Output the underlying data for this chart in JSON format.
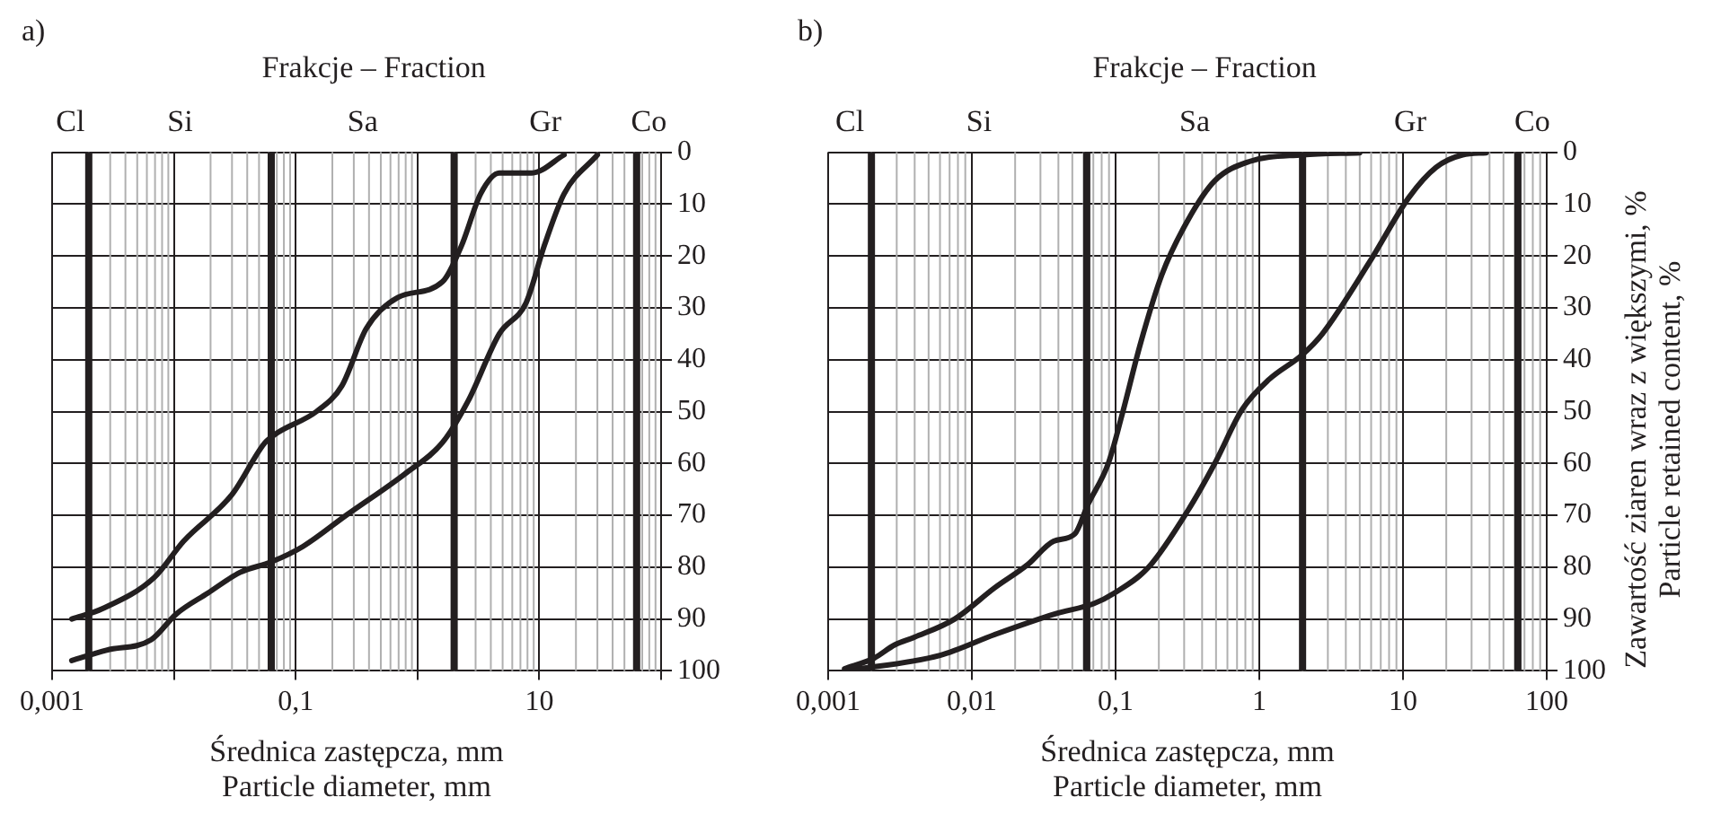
{
  "chart_data": [
    {
      "type": "line",
      "title": "a)",
      "subtitle": "Frakcje – Fraction",
      "xlabel": "Średnica zastępcza, mm\nParticle diameter, mm",
      "annotations": [
        "Cl",
        "Si",
        "Sa",
        "Gr",
        "Co"
      ],
      "log": "x",
      "xlim": [
        0.001,
        100
      ],
      "xticks": [
        {
          "value": 0.001,
          "label": "0,001"
        },
        {
          "value": 0.01,
          "label": null
        },
        {
          "value": 0.1,
          "label": "0,1"
        },
        {
          "value": 1,
          "label": null
        },
        10,
        {
          "value": 100,
          "label": null
        }
      ],
      "ylim": [
        100,
        0
      ],
      "yticks": [
        0,
        10,
        20,
        30,
        40,
        50,
        60,
        70,
        80,
        90,
        100
      ],
      "grid": true,
      "legend": false,
      "marker": "none",
      "line_style": "solid",
      "ref_lines": [
        {
          "axis": "x",
          "value": 0.002,
          "color": "#231f20"
        },
        {
          "axis": "x",
          "value": 0.063,
          "color": "#231f20"
        },
        {
          "axis": "x",
          "value": 2,
          "color": "#231f20"
        },
        {
          "axis": "x",
          "value": 63,
          "color": "#231f20"
        }
      ],
      "series": [
        {
          "color": "#231f20",
          "x": [
            0.00145,
            0.0026,
            0.0069,
            0.012,
            0.03,
            0.056,
            0.072,
            0.148,
            0.24,
            0.38,
            0.69,
            1.6,
            2.3,
            3.3,
            4.7,
            8.7,
            16
          ],
          "values": [
            90,
            88,
            82,
            75,
            66,
            56,
            54,
            50,
            45,
            34,
            28,
            25,
            18,
            8,
            4,
            4,
            0.5
          ]
        },
        {
          "color": "#231f20",
          "x": [
            0.00145,
            0.0028,
            0.0065,
            0.0105,
            0.019,
            0.035,
            0.063,
            0.115,
            0.26,
            0.79,
            1.6,
            2.6,
            4.7,
            7.8,
            11,
            16,
            30
          ],
          "values": [
            98,
            96,
            94,
            89,
            85,
            81,
            79,
            76,
            70,
            62,
            56,
            48,
            35,
            29,
            18,
            8,
            0.5
          ]
        }
      ]
    },
    {
      "type": "line",
      "title": "b)",
      "subtitle": "Frakcje – Fraction",
      "xlabel": "Średnica zastępcza, mm\nParticle diameter, mm",
      "ylabel": "Zawartość ziaren wraz z większymi, %\nParticle retained content, %",
      "annotations": [
        "Cl",
        "Si",
        "Sa",
        "Gr",
        "Co"
      ],
      "log": "x",
      "xlim": [
        0.001,
        100
      ],
      "xticks": [
        {
          "value": 0.001,
          "label": "0,001"
        },
        {
          "value": 0.01,
          "label": "0,01"
        },
        {
          "value": 0.1,
          "label": "0,1"
        },
        1,
        10,
        100
      ],
      "ylim": [
        100,
        0
      ],
      "yticks": [
        0,
        10,
        20,
        30,
        40,
        50,
        60,
        70,
        80,
        90,
        100
      ],
      "grid": true,
      "legend": false,
      "marker": "none",
      "line_style": "solid",
      "ref_lines": [
        {
          "axis": "x",
          "value": 0.002,
          "color": "#231f20"
        },
        {
          "axis": "x",
          "value": 0.063,
          "color": "#231f20"
        },
        {
          "axis": "x",
          "value": 2,
          "color": "#231f20"
        },
        {
          "axis": "x",
          "value": 63,
          "color": "#231f20"
        }
      ],
      "series": [
        {
          "color": "#231f20",
          "x": [
            0.0013,
            0.0021,
            0.0029,
            0.004,
            0.0076,
            0.0144,
            0.0245,
            0.037,
            0.052,
            0.064,
            0.089,
            0.11,
            0.15,
            0.21,
            0.32,
            0.49,
            0.85,
            2,
            5
          ],
          "values": [
            99.6,
            97.5,
            95,
            93.5,
            90,
            84,
            79.5,
            75,
            73.6,
            68,
            60,
            51,
            36.6,
            23.6,
            13,
            5.5,
            1.8,
            0.5,
            0.1
          ]
        },
        {
          "color": "#231f20",
          "x": [
            0.0013,
            0.006,
            0.0144,
            0.038,
            0.071,
            0.098,
            0.17,
            0.32,
            0.49,
            0.76,
            1.17,
            2,
            2.75,
            5.9,
            11,
            17,
            26,
            38
          ],
          "values": [
            100,
            97,
            93,
            89,
            87,
            85,
            80,
            69,
            60,
            49.6,
            43.8,
            39,
            35,
            21,
            8.7,
            2.9,
            0.5,
            0.1
          ]
        }
      ]
    }
  ]
}
